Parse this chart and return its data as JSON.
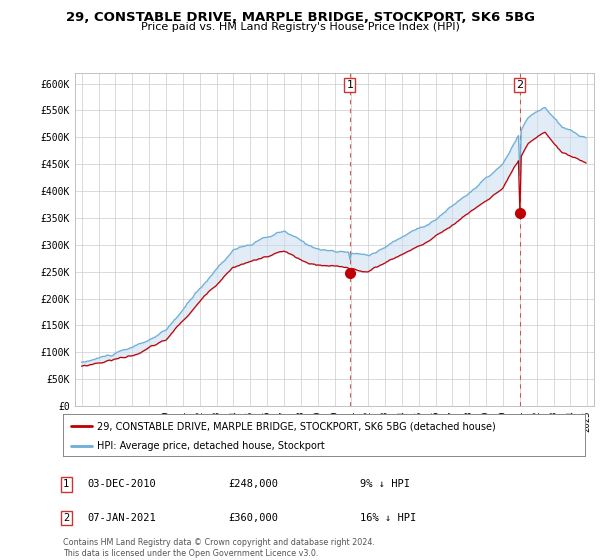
{
  "title_line1": "29, CONSTABLE DRIVE, MARPLE BRIDGE, STOCKPORT, SK6 5BG",
  "title_line2": "Price paid vs. HM Land Registry's House Price Index (HPI)",
  "ylim": [
    0,
    620000
  ],
  "yticks": [
    0,
    50000,
    100000,
    150000,
    200000,
    250000,
    300000,
    350000,
    400000,
    450000,
    500000,
    550000,
    600000
  ],
  "ytick_labels": [
    "£0",
    "£50K",
    "£100K",
    "£150K",
    "£200K",
    "£250K",
    "£300K",
    "£350K",
    "£400K",
    "£450K",
    "£500K",
    "£550K",
    "£600K"
  ],
  "hpi_color": "#6baed6",
  "sale_color": "#c00000",
  "fill_color": "#c6dbef",
  "legend_sale": "29, CONSTABLE DRIVE, MARPLE BRIDGE, STOCKPORT, SK6 5BG (detached house)",
  "legend_hpi": "HPI: Average price, detached house, Stockport",
  "annotation1_date": "03-DEC-2010",
  "annotation1_price": "£248,000",
  "annotation1_hpi": "9% ↓ HPI",
  "annotation2_date": "07-JAN-2021",
  "annotation2_price": "£360,000",
  "annotation2_hpi": "16% ↓ HPI",
  "footer": "Contains HM Land Registry data © Crown copyright and database right 2024.\nThis data is licensed under the Open Government Licence v3.0.",
  "background_color": "#ffffff",
  "grid_color": "#cccccc",
  "start_year": 1995,
  "n_months": 360,
  "m1_month": 191,
  "m2_month": 312,
  "m1_value": 248000,
  "m2_value": 360000,
  "hpi_seed": 10,
  "sale_seed": 20
}
